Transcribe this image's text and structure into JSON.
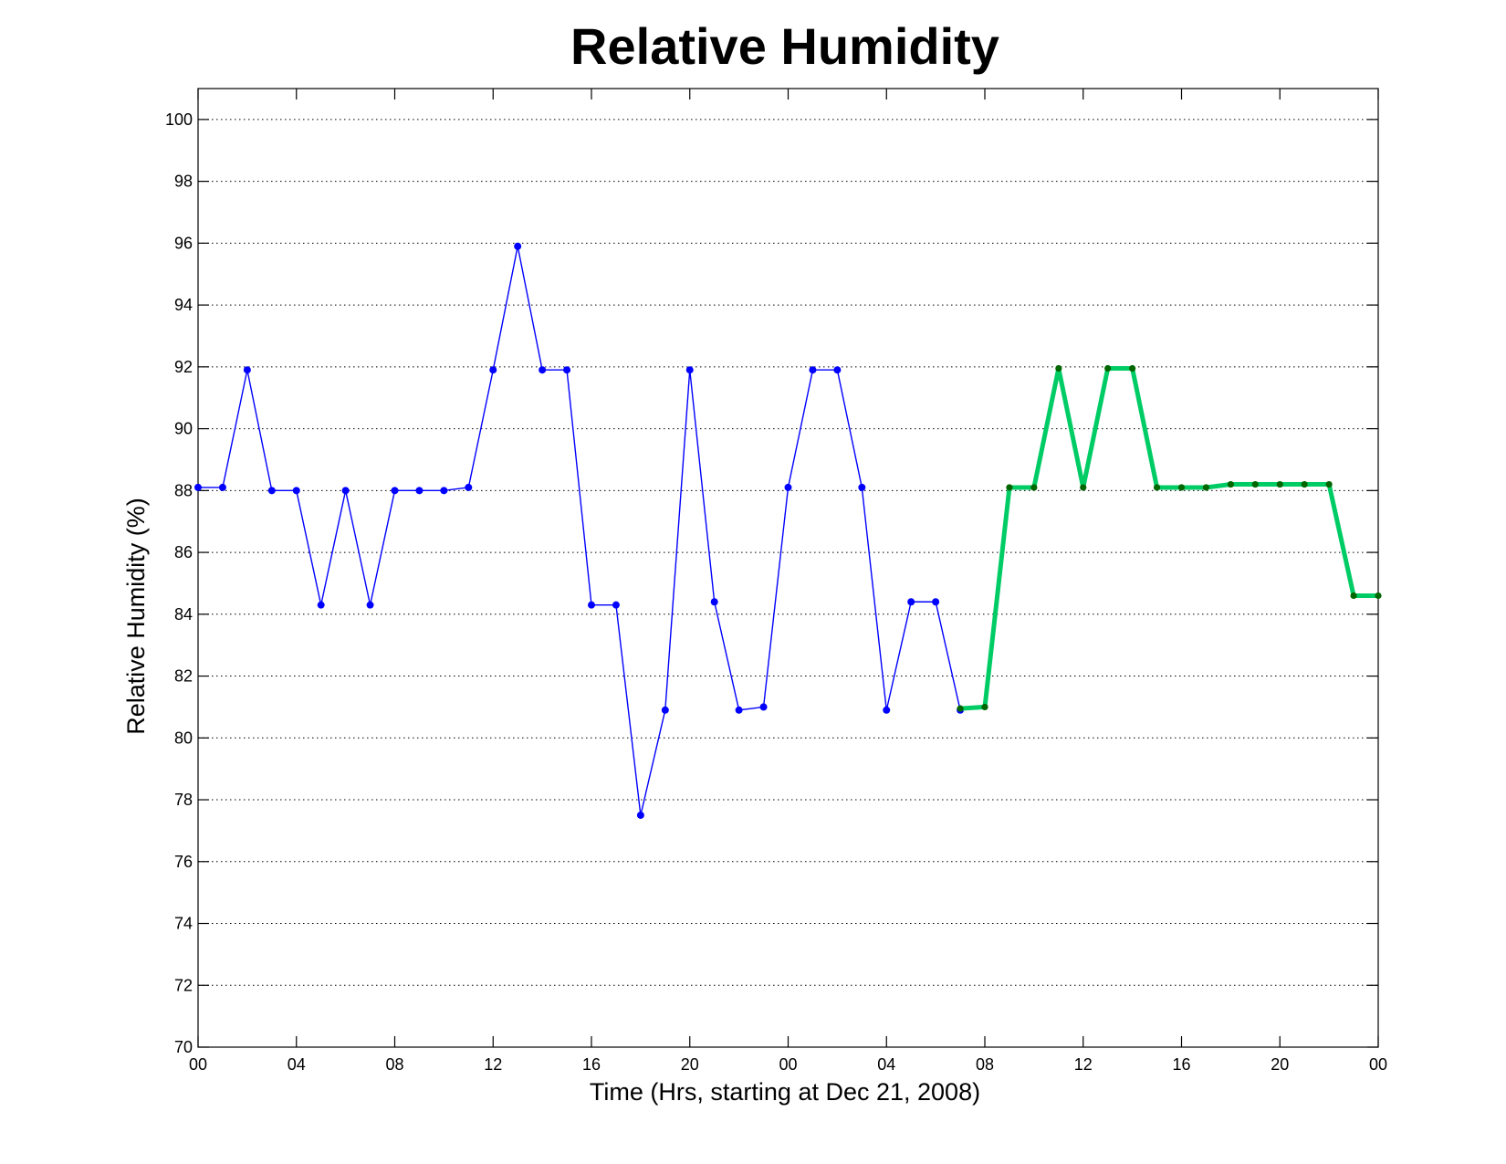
{
  "chart_data": {
    "type": "line",
    "title": "Relative Humidity",
    "xlabel": "Time (Hrs, starting at Dec 21, 2008)",
    "ylabel": "Relative Humidity (%)",
    "ylim": [
      70,
      101
    ],
    "xlim": [
      "2008-12-21 00:00",
      "2008-12-23 00:00"
    ],
    "grid": "horizontal-dotted",
    "x_tick_labels": [
      "00",
      "04",
      "08",
      "12",
      "16",
      "20",
      "00",
      "04",
      "08",
      "12",
      "16",
      "20",
      "00"
    ],
    "y_tick_labels": [
      "70",
      "72",
      "74",
      "76",
      "78",
      "80",
      "82",
      "84",
      "86",
      "88",
      "90",
      "92",
      "94",
      "96",
      "98",
      "100"
    ],
    "series": [
      {
        "line_color": "#0000ff",
        "marker_color": "#0000ff",
        "line_style": "thin",
        "points": [
          [
            "2008-12-21 00:00",
            88.1
          ],
          [
            "2008-12-21 01:00",
            88.1
          ],
          [
            "2008-12-21 02:00",
            91.9
          ],
          [
            "2008-12-21 03:00",
            88.0
          ],
          [
            "2008-12-21 04:00",
            88.0
          ],
          [
            "2008-12-21 05:00",
            84.3
          ],
          [
            "2008-12-21 06:00",
            88.0
          ],
          [
            "2008-12-21 07:00",
            84.3
          ],
          [
            "2008-12-21 08:00",
            88.0
          ],
          [
            "2008-12-21 09:00",
            88.0
          ],
          [
            "2008-12-21 10:00",
            88.0
          ],
          [
            "2008-12-21 11:00",
            88.1
          ],
          [
            "2008-12-21 12:00",
            91.9
          ],
          [
            "2008-12-21 13:00",
            95.9
          ],
          [
            "2008-12-21 14:00",
            91.9
          ],
          [
            "2008-12-21 15:00",
            91.9
          ],
          [
            "2008-12-21 16:00",
            84.3
          ],
          [
            "2008-12-21 17:00",
            84.3
          ],
          [
            "2008-12-21 18:00",
            77.5
          ],
          [
            "2008-12-21 19:00",
            80.9
          ],
          [
            "2008-12-21 20:00",
            91.9
          ],
          [
            "2008-12-21 21:00",
            84.4
          ],
          [
            "2008-12-21 22:00",
            80.9
          ],
          [
            "2008-12-21 23:00",
            81.0
          ],
          [
            "2008-12-22 00:00",
            88.1
          ],
          [
            "2008-12-22 01:00",
            91.9
          ],
          [
            "2008-12-22 02:00",
            91.9
          ],
          [
            "2008-12-22 03:00",
            88.1
          ],
          [
            "2008-12-22 04:00",
            80.9
          ],
          [
            "2008-12-22 05:00",
            84.4
          ],
          [
            "2008-12-22 06:00",
            84.4
          ],
          [
            "2008-12-22 07:00",
            80.9
          ]
        ]
      },
      {
        "line_color": "#00cc66",
        "marker_color": "#006600",
        "line_style": "thick",
        "points": [
          [
            "2008-12-22 07:00",
            80.95
          ],
          [
            "2008-12-22 08:00",
            81.0
          ],
          [
            "2008-12-22 09:00",
            88.1
          ],
          [
            "2008-12-22 10:00",
            88.1
          ],
          [
            "2008-12-22 11:00",
            91.95
          ],
          [
            "2008-12-22 12:00",
            88.1
          ],
          [
            "2008-12-22 13:00",
            91.95
          ],
          [
            "2008-12-22 14:00",
            91.95
          ],
          [
            "2008-12-22 15:00",
            88.1
          ],
          [
            "2008-12-22 16:00",
            88.1
          ],
          [
            "2008-12-22 17:00",
            88.1
          ],
          [
            "2008-12-22 18:00",
            88.2
          ],
          [
            "2008-12-22 19:00",
            88.2
          ],
          [
            "2008-12-22 20:00",
            88.2
          ],
          [
            "2008-12-22 21:00",
            88.2
          ],
          [
            "2008-12-22 22:00",
            88.2
          ],
          [
            "2008-12-22 23:00",
            84.6
          ],
          [
            "2008-12-23 00:00",
            84.6
          ]
        ]
      }
    ]
  }
}
